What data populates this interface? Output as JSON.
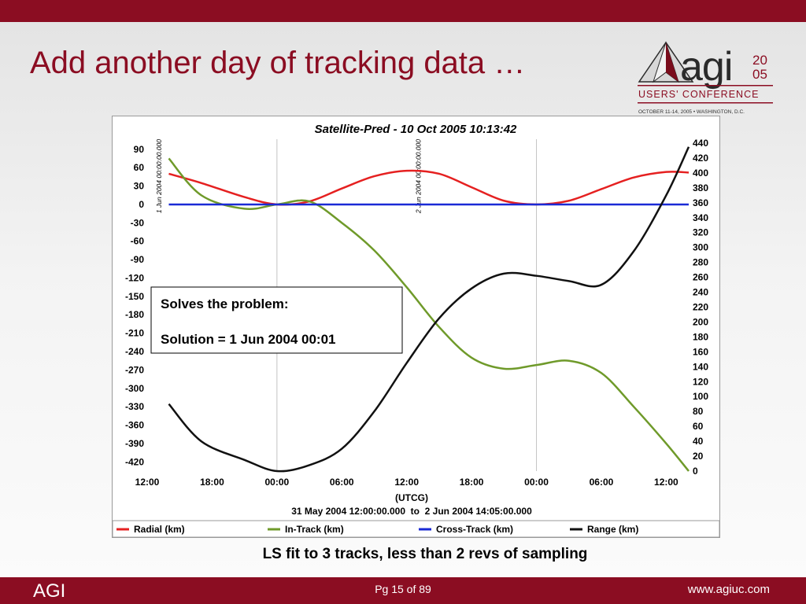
{
  "slide": {
    "title": "Add another day of tracking data …",
    "subtitle": "LS fit to 3 tracks, less than 2 revs of sampling"
  },
  "logo": {
    "brand": "agi",
    "year_top": "20",
    "year_bottom": "05",
    "event": "USERS' CONFERENCE",
    "dates": "OCTOBER 11-14, 2005 • WASHINGTON, D.C."
  },
  "footer": {
    "left": "AGI",
    "page": "Pg 15 of 89",
    "url": "www.agiuc.com"
  },
  "colors": {
    "brand": "#8b0d22",
    "radial": "#e52020",
    "in_track": "#6f9a2a",
    "cross_track": "#1a2ad6",
    "range": "#111111"
  },
  "chart_data": {
    "type": "line",
    "title": "Satellite-Pred - 10 Oct 2005 10:13:42",
    "xlabel": "(UTCG)",
    "time_span": "31 May 2004 12:00:00.000  to  2 Jun 2004 14:05:00.000",
    "x_axis": {
      "range": [
        "31 May 2004 12:00",
        "2 Jun 2004 14:05"
      ],
      "ticks": [
        "12:00",
        "18:00",
        "00:00",
        "06:00",
        "12:00",
        "18:00",
        "00:00",
        "06:00",
        "12:00"
      ]
    },
    "y_left": {
      "range": [
        -435,
        100
      ],
      "ticks": [
        90,
        60,
        30,
        0,
        -30,
        -60,
        -90,
        -120,
        -150,
        -180,
        -210,
        -240,
        -270,
        -300,
        -330,
        -360,
        -390,
        -420
      ]
    },
    "y_right": {
      "range": [
        0,
        440
      ],
      "ticks": [
        440,
        420,
        400,
        380,
        360,
        340,
        320,
        300,
        280,
        260,
        240,
        220,
        200,
        180,
        160,
        140,
        120,
        100,
        80,
        60,
        40,
        20,
        0
      ]
    },
    "markers": [
      {
        "label": "1 Jun 2004 00:00:00.000",
        "x": "1 Jun 2004 00:00"
      },
      {
        "label": "2 Jun 2004 00:00:00.000",
        "x": "2 Jun 2004 00:00"
      }
    ],
    "annotation": {
      "line1": "Solves the problem:",
      "line2": "Solution = 1 Jun 2004 00:01"
    },
    "legend_position": "bottom",
    "series": [
      {
        "name": "Radial (km)",
        "axis": "left",
        "x": [
          "31 May 2004 14:00",
          "31 May 2004 17:00",
          "31 May 2004 21:00",
          "1 Jun 2004 00:00",
          "1 Jun 2004 03:00",
          "1 Jun 2004 06:00",
          "1 Jun 2004 09:00",
          "1 Jun 2004 12:00",
          "1 Jun 2004 15:00",
          "1 Jun 2004 18:00",
          "1 Jun 2004 21:00",
          "2 Jun 2004 00:00",
          "2 Jun 2004 03:00",
          "2 Jun 2004 06:00",
          "2 Jun 2004 09:00",
          "2 Jun 2004 12:00",
          "2 Jun 2004 14:05"
        ],
        "y": [
          50,
          35,
          12,
          0,
          5,
          26,
          46,
          55,
          50,
          28,
          6,
          0,
          6,
          25,
          44,
          53,
          52
        ]
      },
      {
        "name": "In-Track (km)",
        "axis": "left",
        "x": [
          "31 May 2004 14:00",
          "31 May 2004 17:00",
          "31 May 2004 21:00",
          "1 Jun 2004 00:00",
          "1 Jun 2004 03:00",
          "1 Jun 2004 06:00",
          "1 Jun 2004 09:00",
          "1 Jun 2004 12:00",
          "1 Jun 2004 15:00",
          "1 Jun 2004 18:00",
          "1 Jun 2004 21:00",
          "2 Jun 2004 00:00",
          "2 Jun 2004 03:00",
          "2 Jun 2004 06:00",
          "2 Jun 2004 09:00",
          "2 Jun 2004 12:00",
          "2 Jun 2004 14:05"
        ],
        "y": [
          75,
          15,
          -7,
          0,
          5,
          -30,
          -75,
          -135,
          -200,
          -250,
          -268,
          -262,
          -255,
          -275,
          -330,
          -390,
          -435
        ]
      },
      {
        "name": "Cross-Track (km)",
        "axis": "left",
        "x": [
          "31 May 2004 14:00",
          "1 Jun 2004 00:00",
          "1 Jun 2004 12:00",
          "2 Jun 2004 00:00",
          "2 Jun 2004 14:05"
        ],
        "y": [
          0,
          0,
          0,
          0,
          0
        ]
      },
      {
        "name": "Range (km)",
        "axis": "right",
        "x": [
          "31 May 2004 14:00",
          "31 May 2004 17:00",
          "31 May 2004 21:00",
          "1 Jun 2004 00:00",
          "1 Jun 2004 03:00",
          "1 Jun 2004 06:00",
          "1 Jun 2004 09:00",
          "1 Jun 2004 12:00",
          "1 Jun 2004 15:00",
          "1 Jun 2004 18:00",
          "1 Jun 2004 21:00",
          "2 Jun 2004 00:00",
          "2 Jun 2004 03:00",
          "2 Jun 2004 06:00",
          "2 Jun 2004 09:00",
          "2 Jun 2004 12:00",
          "2 Jun 2004 14:05"
        ],
        "y": [
          90,
          40,
          15,
          0,
          8,
          30,
          80,
          145,
          205,
          245,
          265,
          262,
          255,
          250,
          295,
          370,
          435
        ]
      }
    ]
  }
}
